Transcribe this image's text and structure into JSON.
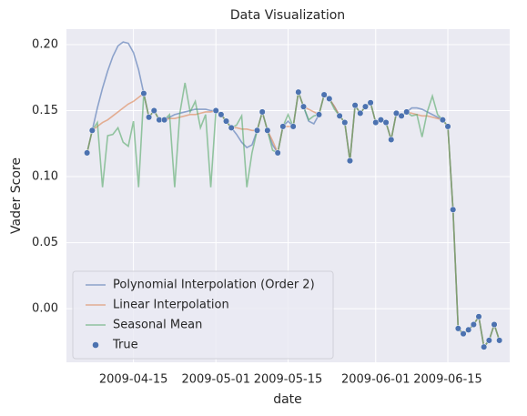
{
  "chart_data": {
    "type": "line",
    "title": "Data Visualization",
    "x_label": "date",
    "y_label": "Vader Score",
    "x": [
      "2009-04-06",
      "2009-04-07",
      "2009-04-08",
      "2009-04-09",
      "2009-04-10",
      "2009-04-11",
      "2009-04-12",
      "2009-04-13",
      "2009-04-14",
      "2009-04-15",
      "2009-04-16",
      "2009-04-17",
      "2009-04-18",
      "2009-04-19",
      "2009-04-20",
      "2009-04-21",
      "2009-04-22",
      "2009-04-23",
      "2009-04-24",
      "2009-04-25",
      "2009-04-26",
      "2009-04-27",
      "2009-04-28",
      "2009-04-29",
      "2009-04-30",
      "2009-05-01",
      "2009-05-02",
      "2009-05-03",
      "2009-05-04",
      "2009-05-05",
      "2009-05-06",
      "2009-05-07",
      "2009-05-08",
      "2009-05-09",
      "2009-05-10",
      "2009-05-11",
      "2009-05-12",
      "2009-05-13",
      "2009-05-14",
      "2009-05-15",
      "2009-05-16",
      "2009-05-17",
      "2009-05-18",
      "2009-05-19",
      "2009-05-20",
      "2009-05-21",
      "2009-05-22",
      "2009-05-23",
      "2009-05-24",
      "2009-05-25",
      "2009-05-26",
      "2009-05-27",
      "2009-05-28",
      "2009-05-29",
      "2009-05-30",
      "2009-05-31",
      "2009-06-01",
      "2009-06-02",
      "2009-06-03",
      "2009-06-04",
      "2009-06-05",
      "2009-06-06",
      "2009-06-07",
      "2009-06-08",
      "2009-06-09",
      "2009-06-10",
      "2009-06-11",
      "2009-06-12",
      "2009-06-13",
      "2009-06-14",
      "2009-06-15",
      "2009-06-16",
      "2009-06-17",
      "2009-06-18",
      "2009-06-19",
      "2009-06-20",
      "2009-06-21",
      "2009-06-22",
      "2009-06-23",
      "2009-06-24",
      "2009-06-25"
    ],
    "series": [
      {
        "name": "Polynomial Interpolation (Order 2)",
        "color": "#4c72b0",
        "values": [
          0.118,
          0.135,
          0.152,
          0.167,
          0.18,
          0.191,
          0.199,
          0.202,
          0.201,
          0.194,
          0.181,
          0.163,
          0.145,
          0.15,
          0.143,
          0.143,
          0.145,
          0.147,
          0.148,
          0.149,
          0.15,
          0.151,
          0.151,
          0.151,
          0.15,
          0.15,
          0.147,
          0.142,
          0.137,
          0.132,
          0.126,
          0.122,
          0.124,
          0.135,
          0.149,
          0.135,
          0.124,
          0.118,
          0.138,
          0.142,
          0.138,
          0.164,
          0.153,
          0.142,
          0.14,
          0.147,
          0.162,
          0.159,
          0.153,
          0.146,
          0.141,
          0.112,
          0.154,
          0.148,
          0.153,
          0.156,
          0.141,
          0.143,
          0.141,
          0.128,
          0.148,
          0.146,
          0.149,
          0.152,
          0.152,
          0.151,
          0.149,
          0.147,
          0.145,
          0.143,
          0.138,
          0.075,
          -0.015,
          -0.019,
          -0.016,
          -0.012,
          -0.006,
          -0.029,
          -0.024,
          -0.012,
          -0.024
        ]
      },
      {
        "name": "Linear Interpolation",
        "color": "#dd8452",
        "values": [
          0.118,
          0.135,
          0.138,
          0.141,
          0.143,
          0.146,
          0.149,
          0.152,
          0.155,
          0.157,
          0.16,
          0.163,
          0.145,
          0.15,
          0.143,
          0.143,
          0.144,
          0.144,
          0.145,
          0.146,
          0.147,
          0.147,
          0.148,
          0.149,
          0.149,
          0.15,
          0.147,
          0.142,
          0.137,
          0.137,
          0.136,
          0.136,
          0.135,
          0.135,
          0.149,
          0.135,
          0.127,
          0.118,
          0.138,
          0.138,
          0.138,
          0.164,
          0.153,
          0.151,
          0.149,
          0.147,
          0.162,
          0.159,
          0.153,
          0.146,
          0.141,
          0.112,
          0.154,
          0.148,
          0.153,
          0.156,
          0.141,
          0.143,
          0.141,
          0.128,
          0.148,
          0.146,
          0.149,
          0.148,
          0.147,
          0.146,
          0.146,
          0.145,
          0.144,
          0.143,
          0.138,
          0.075,
          -0.015,
          -0.019,
          -0.016,
          -0.012,
          -0.006,
          -0.029,
          -0.024,
          -0.012,
          -0.024
        ]
      },
      {
        "name": "Seasonal Mean",
        "color": "#55a868",
        "values": [
          0.118,
          0.135,
          0.141,
          0.092,
          0.131,
          0.132,
          0.137,
          0.126,
          0.123,
          0.142,
          0.092,
          0.163,
          0.145,
          0.15,
          0.143,
          0.143,
          0.147,
          0.092,
          0.148,
          0.171,
          0.149,
          0.157,
          0.137,
          0.147,
          0.092,
          0.15,
          0.147,
          0.142,
          0.137,
          0.139,
          0.146,
          0.092,
          0.118,
          0.135,
          0.149,
          0.135,
          0.12,
          0.118,
          0.138,
          0.147,
          0.138,
          0.164,
          0.153,
          0.143,
          0.146,
          0.147,
          0.162,
          0.159,
          0.151,
          0.146,
          0.141,
          0.112,
          0.154,
          0.148,
          0.153,
          0.156,
          0.141,
          0.143,
          0.141,
          0.128,
          0.148,
          0.146,
          0.149,
          0.146,
          0.147,
          0.13,
          0.149,
          0.161,
          0.147,
          0.143,
          0.138,
          0.075,
          -0.015,
          -0.019,
          -0.016,
          -0.012,
          -0.006,
          -0.029,
          -0.024,
          -0.012,
          -0.024
        ]
      },
      {
        "name": "True",
        "color": "#4c72b0",
        "kind": "scatter",
        "values": [
          0.118,
          0.135,
          null,
          null,
          null,
          null,
          null,
          null,
          null,
          null,
          null,
          0.163,
          0.145,
          0.15,
          0.143,
          0.143,
          null,
          null,
          null,
          null,
          null,
          null,
          null,
          null,
          null,
          0.15,
          0.147,
          0.142,
          0.137,
          null,
          null,
          null,
          null,
          0.135,
          0.149,
          0.135,
          null,
          0.118,
          0.138,
          null,
          0.138,
          0.164,
          0.153,
          null,
          null,
          0.147,
          0.162,
          0.159,
          null,
          0.146,
          0.141,
          0.112,
          0.154,
          0.148,
          0.153,
          0.156,
          0.141,
          0.143,
          0.141,
          0.128,
          0.148,
          0.146,
          0.149,
          null,
          null,
          null,
          null,
          null,
          null,
          0.143,
          0.138,
          0.075,
          -0.015,
          -0.019,
          -0.016,
          -0.012,
          -0.006,
          -0.029,
          -0.024,
          -0.012,
          -0.024
        ]
      }
    ],
    "xlim": [
      "2009-04-02",
      "2009-06-27"
    ],
    "xticks": [
      "2009-04-15",
      "2009-05-01",
      "2009-05-15",
      "2009-06-01",
      "2009-06-15"
    ],
    "ylim": [
      -0.0406,
      0.2117
    ],
    "yticks": [
      {
        "value": 0.0,
        "label": "0.00"
      },
      {
        "value": 0.05,
        "label": "0.05"
      },
      {
        "value": 0.1,
        "label": "0.10"
      },
      {
        "value": 0.15,
        "label": "0.15"
      },
      {
        "value": 0.2,
        "label": "0.20"
      }
    ],
    "grid": true,
    "legend": "lower left"
  }
}
